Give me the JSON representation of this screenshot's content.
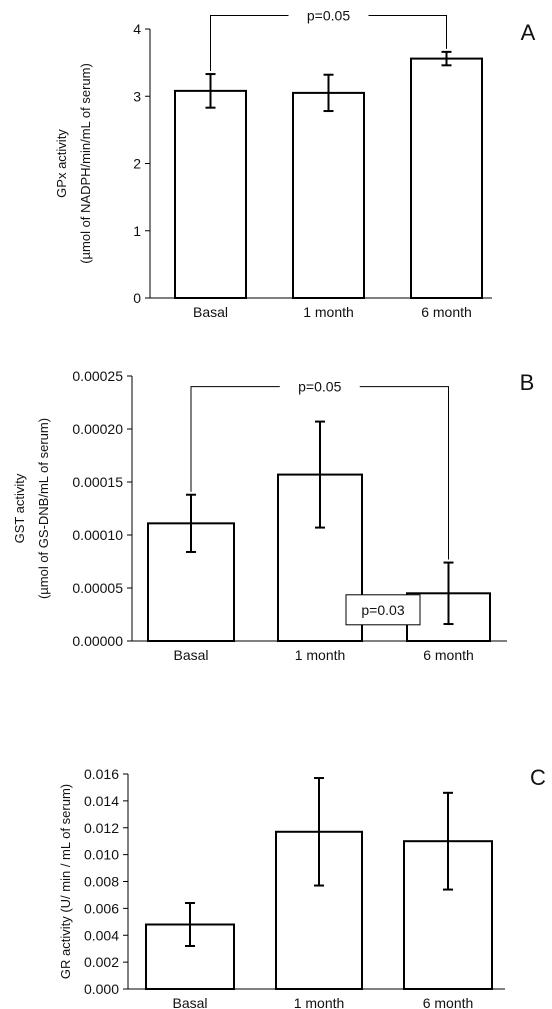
{
  "chart_data": [
    {
      "type": "bar",
      "panel_label": "A",
      "categories": [
        "Basal",
        "1 month",
        "6 month"
      ],
      "values": [
        3.08,
        3.05,
        3.56
      ],
      "errors": [
        0.25,
        0.27,
        0.1
      ],
      "ylabel_lines": [
        "GPx activity",
        "(µmol of NADPH/min/mL of serum)"
      ],
      "ylim": [
        0,
        4
      ],
      "yticks": [
        0,
        1,
        2,
        3,
        4
      ],
      "ytick_labels": [
        "0",
        "1",
        "2",
        "3",
        "4"
      ],
      "annotations": [
        {
          "text": "p=0.05",
          "from": 0,
          "to": 2,
          "level": 4.2,
          "boxed": false
        }
      ]
    },
    {
      "type": "bar",
      "panel_label": "B",
      "categories": [
        "Basal",
        "1 month",
        "6 month"
      ],
      "values": [
        0.000111,
        0.000157,
        4.5e-05
      ],
      "errors": [
        2.7e-05,
        5e-05,
        2.9e-05
      ],
      "ylabel_lines": [
        "GST activity",
        "(µmol of GS-DNB/mL of serum)"
      ],
      "ylim": [
        0,
        0.00025
      ],
      "yticks": [
        0,
        5e-05,
        0.0001,
        0.00015,
        0.0002,
        0.00025
      ],
      "ytick_labels": [
        "0.00000",
        "0.00005",
        "0.00010",
        "0.00015",
        "0.00020",
        "0.00025"
      ],
      "annotations": [
        {
          "text": "p=0.05",
          "from": 0,
          "to": 2,
          "level": 0.00024,
          "boxed": false
        },
        {
          "text": "p=0.03",
          "from": 1,
          "to": 2,
          "level": 2e-05,
          "boxed": true
        }
      ]
    },
    {
      "type": "bar",
      "panel_label": "C",
      "categories": [
        "Basal",
        "1 month",
        "6 month"
      ],
      "values": [
        0.0048,
        0.0117,
        0.011
      ],
      "errors": [
        0.0016,
        0.004,
        0.0036
      ],
      "ylabel_lines": [
        "GR activity (U/ min / mL of serum)"
      ],
      "ylim": [
        0,
        0.016
      ],
      "yticks": [
        0,
        0.002,
        0.004,
        0.006,
        0.008,
        0.01,
        0.012,
        0.014,
        0.016
      ],
      "ytick_labels": [
        "0.000",
        "0.002",
        "0.004",
        "0.006",
        "0.008",
        "0.010",
        "0.012",
        "0.014",
        "0.016"
      ],
      "annotations": []
    }
  ]
}
